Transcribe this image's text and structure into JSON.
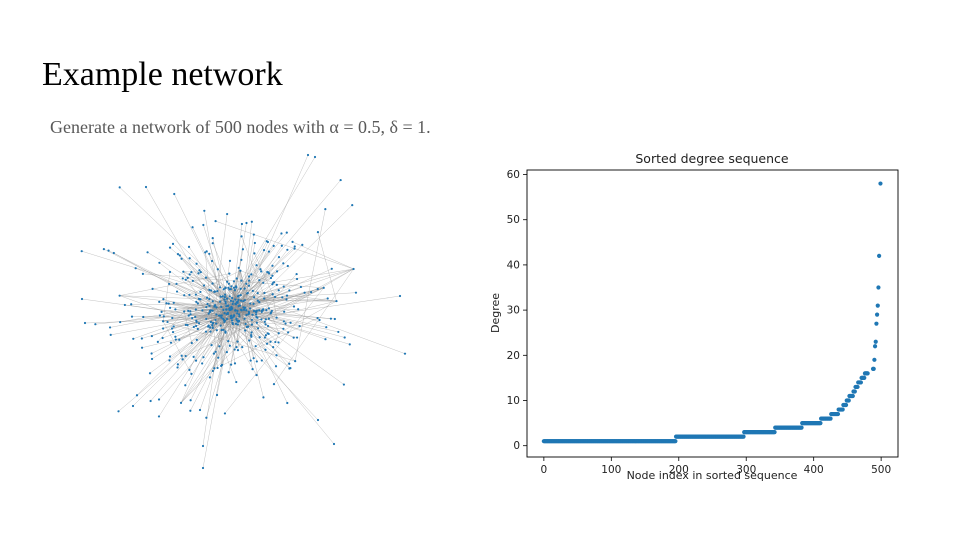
{
  "slide": {
    "title": "Example network",
    "subtitle": "Generate a network of 500 nodes with α = 0.5, δ = 1."
  },
  "colors": {
    "node": "#1f77b4",
    "edge": "#8c8c8c",
    "subtitle": "#595959"
  },
  "chart_data": {
    "type": "scatter",
    "title": "Sorted degree sequence",
    "xlabel": "Node index in sorted sequence",
    "ylabel": "Degree",
    "xlim": [
      -25,
      525
    ],
    "ylim": [
      -2.5,
      61
    ],
    "x_ticks": [
      0,
      100,
      200,
      300,
      400,
      500
    ],
    "y_ticks": [
      0,
      10,
      20,
      30,
      40,
      50,
      60
    ],
    "grid": false,
    "degree_runs": [
      {
        "from": 0,
        "to": 195,
        "degree": 1
      },
      {
        "from": 196,
        "to": 296,
        "degree": 2
      },
      {
        "from": 297,
        "to": 342,
        "degree": 3
      },
      {
        "from": 343,
        "to": 382,
        "degree": 4
      },
      {
        "from": 383,
        "to": 410,
        "degree": 5
      },
      {
        "from": 411,
        "to": 425,
        "degree": 6
      },
      {
        "from": 426,
        "to": 436,
        "degree": 7
      },
      {
        "from": 437,
        "to": 443,
        "degree": 8
      },
      {
        "from": 444,
        "to": 448,
        "degree": 9
      },
      {
        "from": 449,
        "to": 452,
        "degree": 10
      },
      {
        "from": 453,
        "to": 458,
        "degree": 11
      },
      {
        "from": 459,
        "to": 461,
        "degree": 12
      },
      {
        "from": 462,
        "to": 465,
        "degree": 13
      },
      {
        "from": 466,
        "to": 470,
        "degree": 14
      },
      {
        "from": 471,
        "to": 475,
        "degree": 15
      },
      {
        "from": 476,
        "to": 480,
        "degree": 16
      }
    ],
    "tail": [
      {
        "x": 488,
        "y": 17
      },
      {
        "x": 489,
        "y": 17
      },
      {
        "x": 490,
        "y": 19
      },
      {
        "x": 491,
        "y": 22
      },
      {
        "x": 492,
        "y": 23
      },
      {
        "x": 493,
        "y": 27
      },
      {
        "x": 494,
        "y": 29
      },
      {
        "x": 495,
        "y": 31
      },
      {
        "x": 496,
        "y": 35
      },
      {
        "x": 497,
        "y": 42
      },
      {
        "x": 499,
        "y": 58
      }
    ]
  }
}
